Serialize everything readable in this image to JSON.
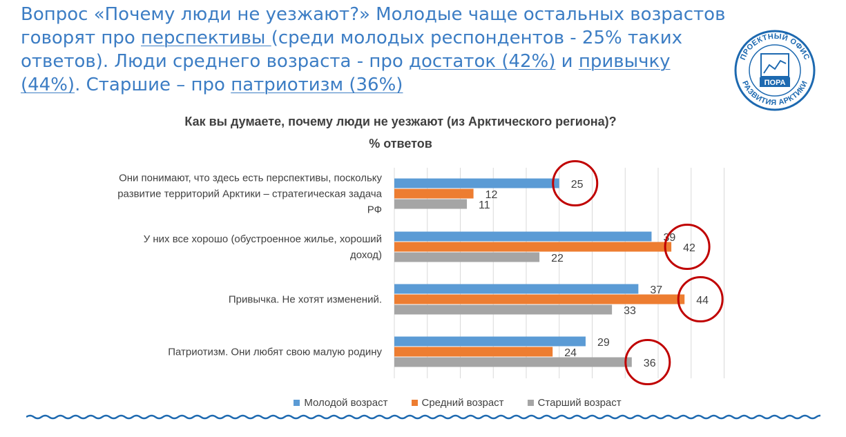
{
  "headline": {
    "seg1": "Вопрос «Почему люди не уезжают?» Молодые чаще остальных возрастов говорят про ",
    "u1": "перспективы ",
    "seg2": "(среди молодых респондентов - 25% таких ответов). Люди среднего возраста - про ",
    "u2": "достаток (42%)",
    "seg3": " и ",
    "u3": "привычку (44%)",
    "seg4": ". Старшие – про ",
    "u4": "патриотизм (36%)"
  },
  "logo": {
    "top_text": "ПРОЕКТНЫЙ ОФИС",
    "bottom_text": "РАЗВИТИЯ АРКТИКИ",
    "center_text": "ПОРА",
    "color": "#1d69b0"
  },
  "colors": {
    "accent": "#3c7dc4",
    "highlight_circle": "#c00000",
    "grid": "#d9d9d9",
    "label": "#404040"
  },
  "chart_data": {
    "type": "bar",
    "orientation": "horizontal",
    "title": "Как вы думаете, почему люди не уезжают (из Арктического региона)?",
    "subtitle": "% ответов",
    "categories": [
      [
        "Они понимают, что здесь есть перспективы, поскольку",
        "развитие территорий Арктики – стратегическая задача",
        "РФ"
      ],
      [
        "У них все хорошо (обустроенное жилье, хороший",
        "доход)"
      ],
      [
        "Привычка. Не хотят изменений."
      ],
      [
        "Патриотизм. Они любят свою малую родину"
      ]
    ],
    "series": [
      {
        "name": "Молодой возраст",
        "color": "#5b9bd5",
        "values": [
          25,
          39,
          37,
          29
        ]
      },
      {
        "name": "Средний возраст",
        "color": "#ed7d31",
        "values": [
          12,
          42,
          44,
          24
        ]
      },
      {
        "name": "Старший возраст",
        "color": "#a5a5a5",
        "values": [
          11,
          22,
          33,
          36
        ]
      }
    ],
    "xlim": [
      0,
      50
    ],
    "grid": true,
    "legend_position": "bottom",
    "highlighted": [
      {
        "series": 0,
        "category": 0
      },
      {
        "series": 1,
        "category": 1
      },
      {
        "series": 1,
        "category": 2
      },
      {
        "series": 2,
        "category": 3
      }
    ]
  }
}
